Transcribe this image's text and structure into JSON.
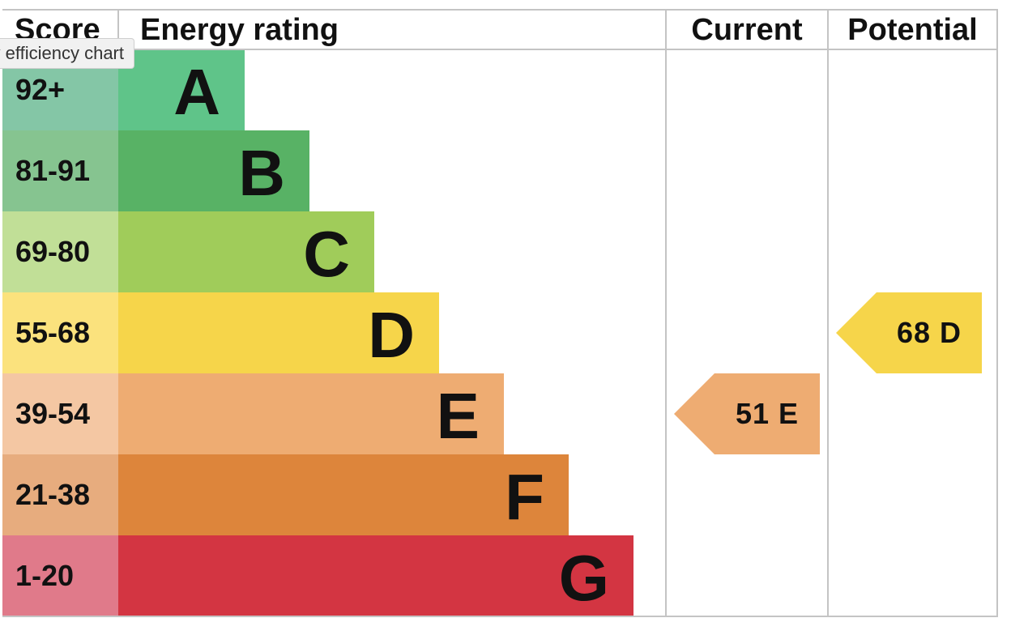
{
  "tooltip": "Energy efficiency chart",
  "chart_data": {
    "type": "table",
    "headers": {
      "score": "Score",
      "rating": "Energy rating",
      "current": "Current",
      "potential": "Potential"
    },
    "bands": [
      {
        "score": "92+",
        "letter": "A",
        "color": "#5fc489",
        "score_color": "#84c6a6",
        "bar_length": 1
      },
      {
        "score": "81-91",
        "letter": "B",
        "color": "#58b265",
        "score_color": "#86c490",
        "bar_length": 2
      },
      {
        "score": "69-80",
        "letter": "C",
        "color": "#a0cc5a",
        "score_color": "#c1df97",
        "bar_length": 3
      },
      {
        "score": "55-68",
        "letter": "D",
        "color": "#f6d54a",
        "score_color": "#fbe27d",
        "bar_length": 4
      },
      {
        "score": "39-54",
        "letter": "E",
        "color": "#eeac72",
        "score_color": "#f4c7a3",
        "bar_length": 5
      },
      {
        "score": "21-38",
        "letter": "F",
        "color": "#dd853b",
        "score_color": "#e7ac7e",
        "bar_length": 6
      },
      {
        "score": "1-20",
        "letter": "G",
        "color": "#d33542",
        "score_color": "#e07a8a",
        "bar_length": 7
      }
    ],
    "current": {
      "value": 51,
      "band": "E",
      "text": "51  E",
      "color": "#eeac72"
    },
    "potential": {
      "value": 68,
      "band": "D",
      "text": "68  D",
      "color": "#f6d54a"
    }
  }
}
